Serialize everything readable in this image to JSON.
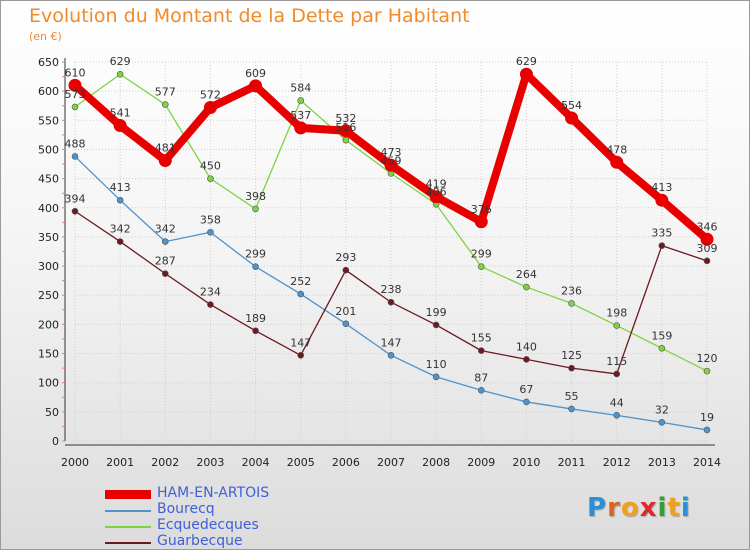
{
  "header": {
    "title": "Evolution du Montant de la Dette par Habitant",
    "subtitle": "(en €)"
  },
  "logo": {
    "letters": [
      "P",
      "r",
      "o",
      "x",
      "i",
      "t",
      "i"
    ],
    "colors": [
      "#2a8fd6",
      "#e0641e",
      "#f0a020",
      "#e02828",
      "#30a030",
      "#f0a020",
      "#2a8fd6"
    ]
  },
  "chart_data": {
    "type": "line",
    "title": "Evolution du Montant de la Dette par Habitant",
    "ylabel": "(en €)",
    "xlabel": "",
    "x": [
      2000,
      2001,
      2002,
      2003,
      2004,
      2005,
      2006,
      2007,
      2008,
      2009,
      2010,
      2011,
      2012,
      2013,
      2014
    ],
    "yticks": [
      0,
      50,
      100,
      150,
      200,
      250,
      300,
      350,
      400,
      450,
      500,
      550,
      600,
      650
    ],
    "ylim": [
      0,
      650
    ],
    "grid": true,
    "legend_position": "bottom-left",
    "series": [
      {
        "name": "HAM-EN-ARTOIS",
        "color": "#e80000",
        "values": [
          610,
          541,
          481,
          572,
          609,
          537,
          532,
          473,
          419,
          376,
          629,
          554,
          478,
          413,
          346
        ],
        "labels": [
          "610",
          "541",
          "481",
          "572",
          "609",
          "537",
          "532",
          "473",
          "419",
          "376",
          "629",
          "554",
          "478",
          "413",
          "346"
        ]
      },
      {
        "name": "Bourecq",
        "color": "#4f93cc",
        "values": [
          488,
          413,
          342,
          358,
          299,
          252,
          201,
          147,
          110,
          87,
          67,
          55,
          44,
          32,
          19
        ],
        "labels": [
          "488",
          "413",
          "342",
          "358",
          "299",
          "252",
          "201",
          "147",
          "110",
          "87",
          "67",
          "55",
          "44",
          "32",
          "19"
        ]
      },
      {
        "name": "Ecquedecques",
        "color": "#7ed340",
        "values": [
          573,
          629,
          577,
          450,
          398,
          584,
          516,
          459,
          406,
          299,
          264,
          236,
          198,
          159,
          120
        ],
        "labels": [
          "573",
          "629",
          "577",
          "450",
          "398",
          "584",
          "516",
          "459",
          "406",
          "299",
          "264",
          "236",
          "198",
          "159",
          "120"
        ]
      },
      {
        "name": "Guarbecque",
        "color": "#6b1a1f",
        "values": [
          394,
          342,
          287,
          234,
          189,
          147,
          293,
          238,
          199,
          155,
          140,
          125,
          115,
          335,
          309
        ],
        "labels": [
          "394",
          "342",
          "287",
          "234",
          "189",
          "147",
          "293",
          "238",
          "199",
          "155",
          "140",
          "125",
          "115",
          "335",
          "309"
        ]
      }
    ]
  }
}
